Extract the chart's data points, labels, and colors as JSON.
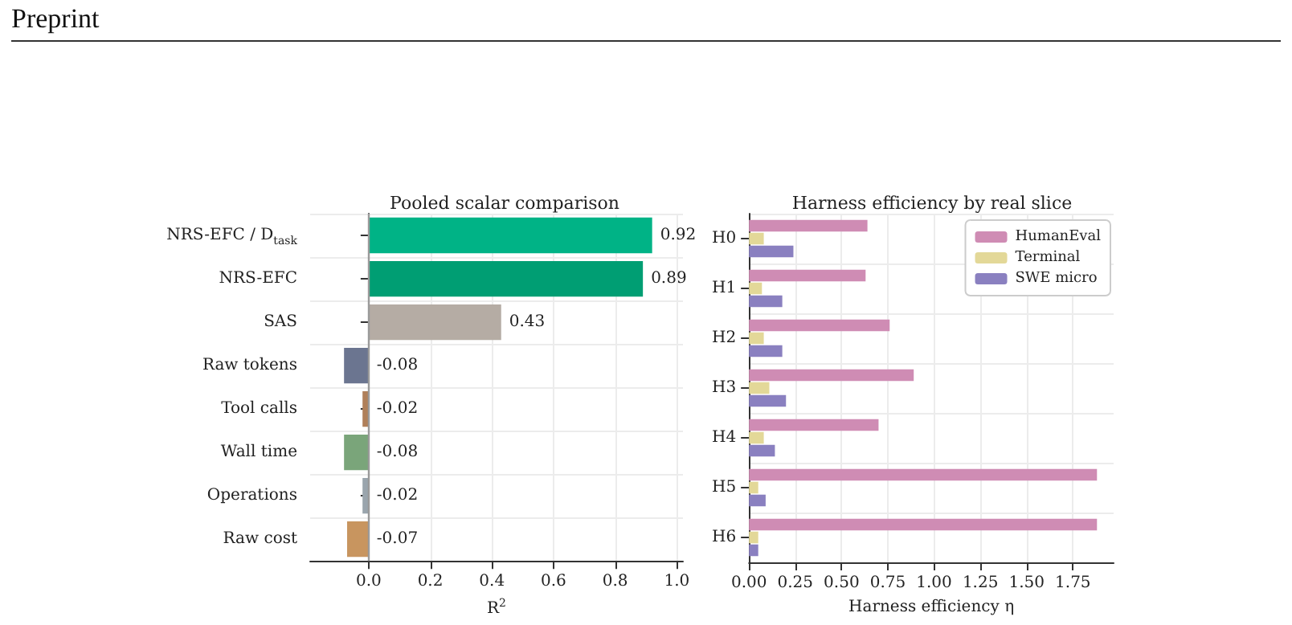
{
  "chart_data": [
    {
      "type": "bar",
      "orientation": "horizontal",
      "title": "Pooled scalar comparison",
      "xlabel": "R$^{2}$",
      "annotations": [
        "Preprint"
      ],
      "categories": [
        "NRS-EFC / D$_{task}$",
        "NRS-EFC",
        "SAS",
        "Raw tokens",
        "Tool calls",
        "Wall time",
        "Operations",
        "Raw cost"
      ],
      "values": [
        0.92,
        0.89,
        0.43,
        -0.08,
        -0.02,
        -0.08,
        -0.02,
        -0.07
      ],
      "colors": [
        "#00b386",
        "#009e73",
        "#b5aca4",
        "#6b7590",
        "#b0805a",
        "#7aa57a",
        "#9aa5ad",
        "#c8955f"
      ],
      "data_labels": true,
      "xlim": [
        -0.19,
        1.02
      ],
      "xticks": [
        {
          "value": 0,
          "label": "0.0"
        },
        {
          "value": 0.2,
          "label": "0.2"
        },
        {
          "value": 0.4,
          "label": "0.4"
        },
        {
          "value": 0.6,
          "label": "0.6"
        },
        {
          "value": 0.8,
          "label": "0.8"
        },
        {
          "value": 1,
          "label": "1.0"
        }
      ],
      "ref_lines": [
        {
          "axis": "x",
          "value": 0,
          "color": "#9a9a9a"
        }
      ],
      "grid": true,
      "legend": false
    },
    {
      "type": "bar",
      "orientation": "horizontal",
      "title": "Harness efficiency by real slice",
      "xlabel": "Harness efficiency η",
      "categories": [
        "H0",
        "H1",
        "H2",
        "H3",
        "H4",
        "H5",
        "H6"
      ],
      "series": [
        {
          "name": "HumanEval",
          "color": "#cf8cb4",
          "values": [
            0.64,
            0.63,
            0.76,
            0.89,
            0.7,
            1.88,
            1.88
          ]
        },
        {
          "name": "Terminal",
          "color": "#e3d898",
          "values": [
            0.08,
            0.07,
            0.08,
            0.11,
            0.08,
            0.05,
            0.05
          ]
        },
        {
          "name": "SWE micro",
          "color": "#8a80c0",
          "values": [
            0.24,
            0.18,
            0.18,
            0.2,
            0.14,
            0.09,
            0.05
          ]
        }
      ],
      "xlim": [
        0,
        1.97
      ],
      "xticks": [
        {
          "value": 0,
          "label": "0.00"
        },
        {
          "value": 0.25,
          "label": "0.25"
        },
        {
          "value": 0.5,
          "label": "0.50"
        },
        {
          "value": 0.75,
          "label": "0.75"
        },
        {
          "value": 1,
          "label": "1.00"
        },
        {
          "value": 1.25,
          "label": "1.25"
        },
        {
          "value": 1.5,
          "label": "1.50"
        },
        {
          "value": 1.75,
          "label": "1.75"
        }
      ],
      "grid": true,
      "legend": "top right"
    }
  ]
}
